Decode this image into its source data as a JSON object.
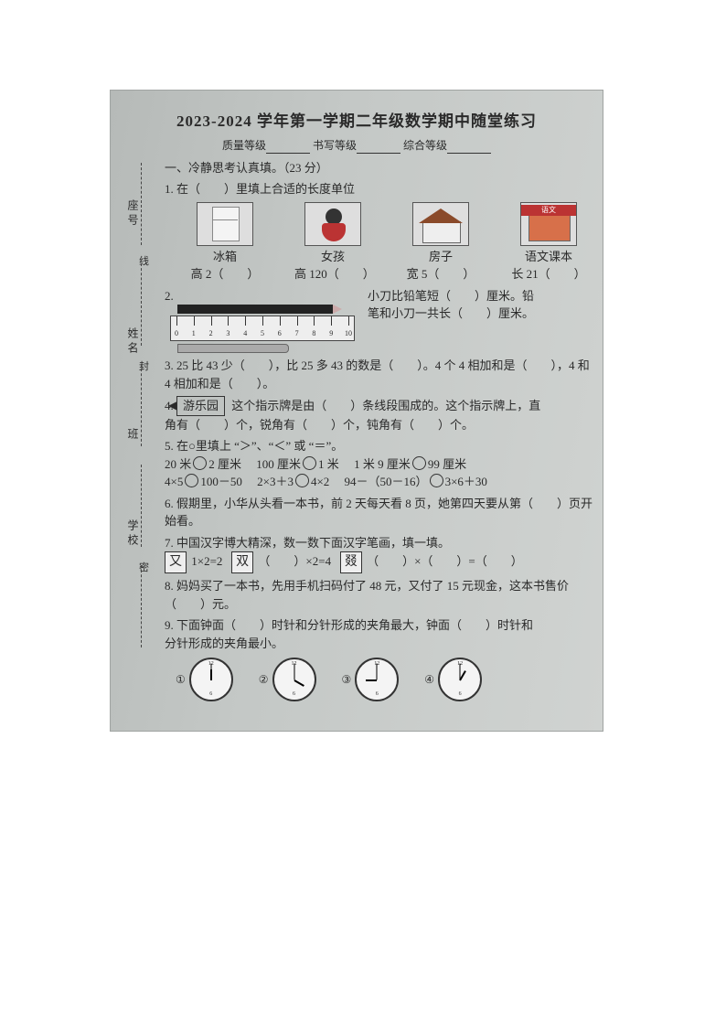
{
  "title": "2023-2024 学年第一学期二年级数学期中随堂练习",
  "grades": {
    "quality": "质量等级",
    "writing": "书写等级",
    "overall": "综合等级"
  },
  "section1": "一、冷静思考认真填。（23 分）",
  "gutter": {
    "seat": "座号",
    "name": "姓名",
    "class": "班",
    "school": "学校",
    "cut_xian": "线",
    "cut_feng": "封",
    "cut_mi": "密"
  },
  "q1": {
    "stem": "1. 在（　　）里填上合适的长度单位",
    "items": [
      {
        "label": "冰箱",
        "line": "高 2（　　）"
      },
      {
        "label": "女孩",
        "line": "高 120（　　）"
      },
      {
        "label": "房子",
        "line": "宽 5（　　）"
      },
      {
        "label": "语文课本",
        "line": "长 21（　　）"
      }
    ]
  },
  "q2": {
    "stem": "2.",
    "right1": "小刀比铅笔短（　　）厘米。铅",
    "right2": "笔和小刀一共长（　　）厘米。",
    "ruler_max": 10
  },
  "q3": "3. 25 比 43 少（　　），比 25 多 43 的数是（　　）。4 个 4 相加和是（　　），4 和 4 相加和是（　　）。",
  "q4": {
    "sign": "游乐园",
    "text1": "这个指示牌是由（　　）条线段围成的。这个指示牌上，直",
    "text2": "角有（　　）个，锐角有（　　）个，钝角有（　　）个。"
  },
  "q5": {
    "stem": "5. 在○里填上 “＞”、“＜” 或 “＝”。",
    "row1": [
      "20 米",
      "2 厘米",
      "100 厘米",
      "1 米",
      "1 米 9 厘米",
      "99 厘米"
    ],
    "row2a": "4×5",
    "row2b": "100－50",
    "row2c": "2×3＋3",
    "row2d": "4×2",
    "row2e": "94－（50－16）",
    "row2f": "3×6＋30"
  },
  "q6": "6. 假期里，小华从头看一本书，前 2 天每天看 8 页，她第四天要从第（　　）页开始看。",
  "q7": {
    "stem": "7. 中国汉字博大精深，数一数下面汉字笔画，填一填。",
    "c1": "又",
    "e1": "1×2=2",
    "c2": "双",
    "e2": "（　　）×2=4",
    "c3": "叕",
    "e3": "（　　）×（　　）=（　　）"
  },
  "q8": "8. 妈妈买了一本书，先用手机扫码付了 48 元，又付了 15 元现金，这本书售价（　　）元。",
  "q9": {
    "stem": "9. 下面钟面（　　）时针和分针形成的夹角最大，钟面（　　）时针和",
    "stem2": "分针形成的夹角最小。",
    "labels": [
      "①",
      "②",
      "③",
      "④"
    ],
    "hours": [
      -90,
      30,
      180,
      -60
    ],
    "mins": [
      -90,
      -90,
      -90,
      -90
    ]
  }
}
